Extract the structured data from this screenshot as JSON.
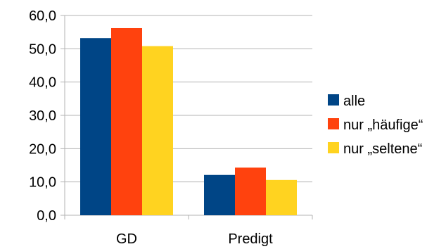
{
  "chart_data": {
    "type": "bar",
    "categories": [
      "GD",
      "Predigt"
    ],
    "series": [
      {
        "name": "alle",
        "values": [
          53.2,
          12.1
        ],
        "color": "#004586"
      },
      {
        "name": "nur „häufige“",
        "values": [
          56.2,
          14.3
        ],
        "color": "#ff420e"
      },
      {
        "name": "nur „seltene“",
        "values": [
          50.8,
          10.6
        ],
        "color": "#ffd320"
      }
    ],
    "y_ticks": [
      "0,0",
      "10,0",
      "20,0",
      "30,0",
      "40,0",
      "50,0",
      "60,0"
    ],
    "ylim": [
      0,
      60
    ],
    "title": "",
    "xlabel": "",
    "ylabel": "",
    "grid": true,
    "legend_position": "right"
  }
}
